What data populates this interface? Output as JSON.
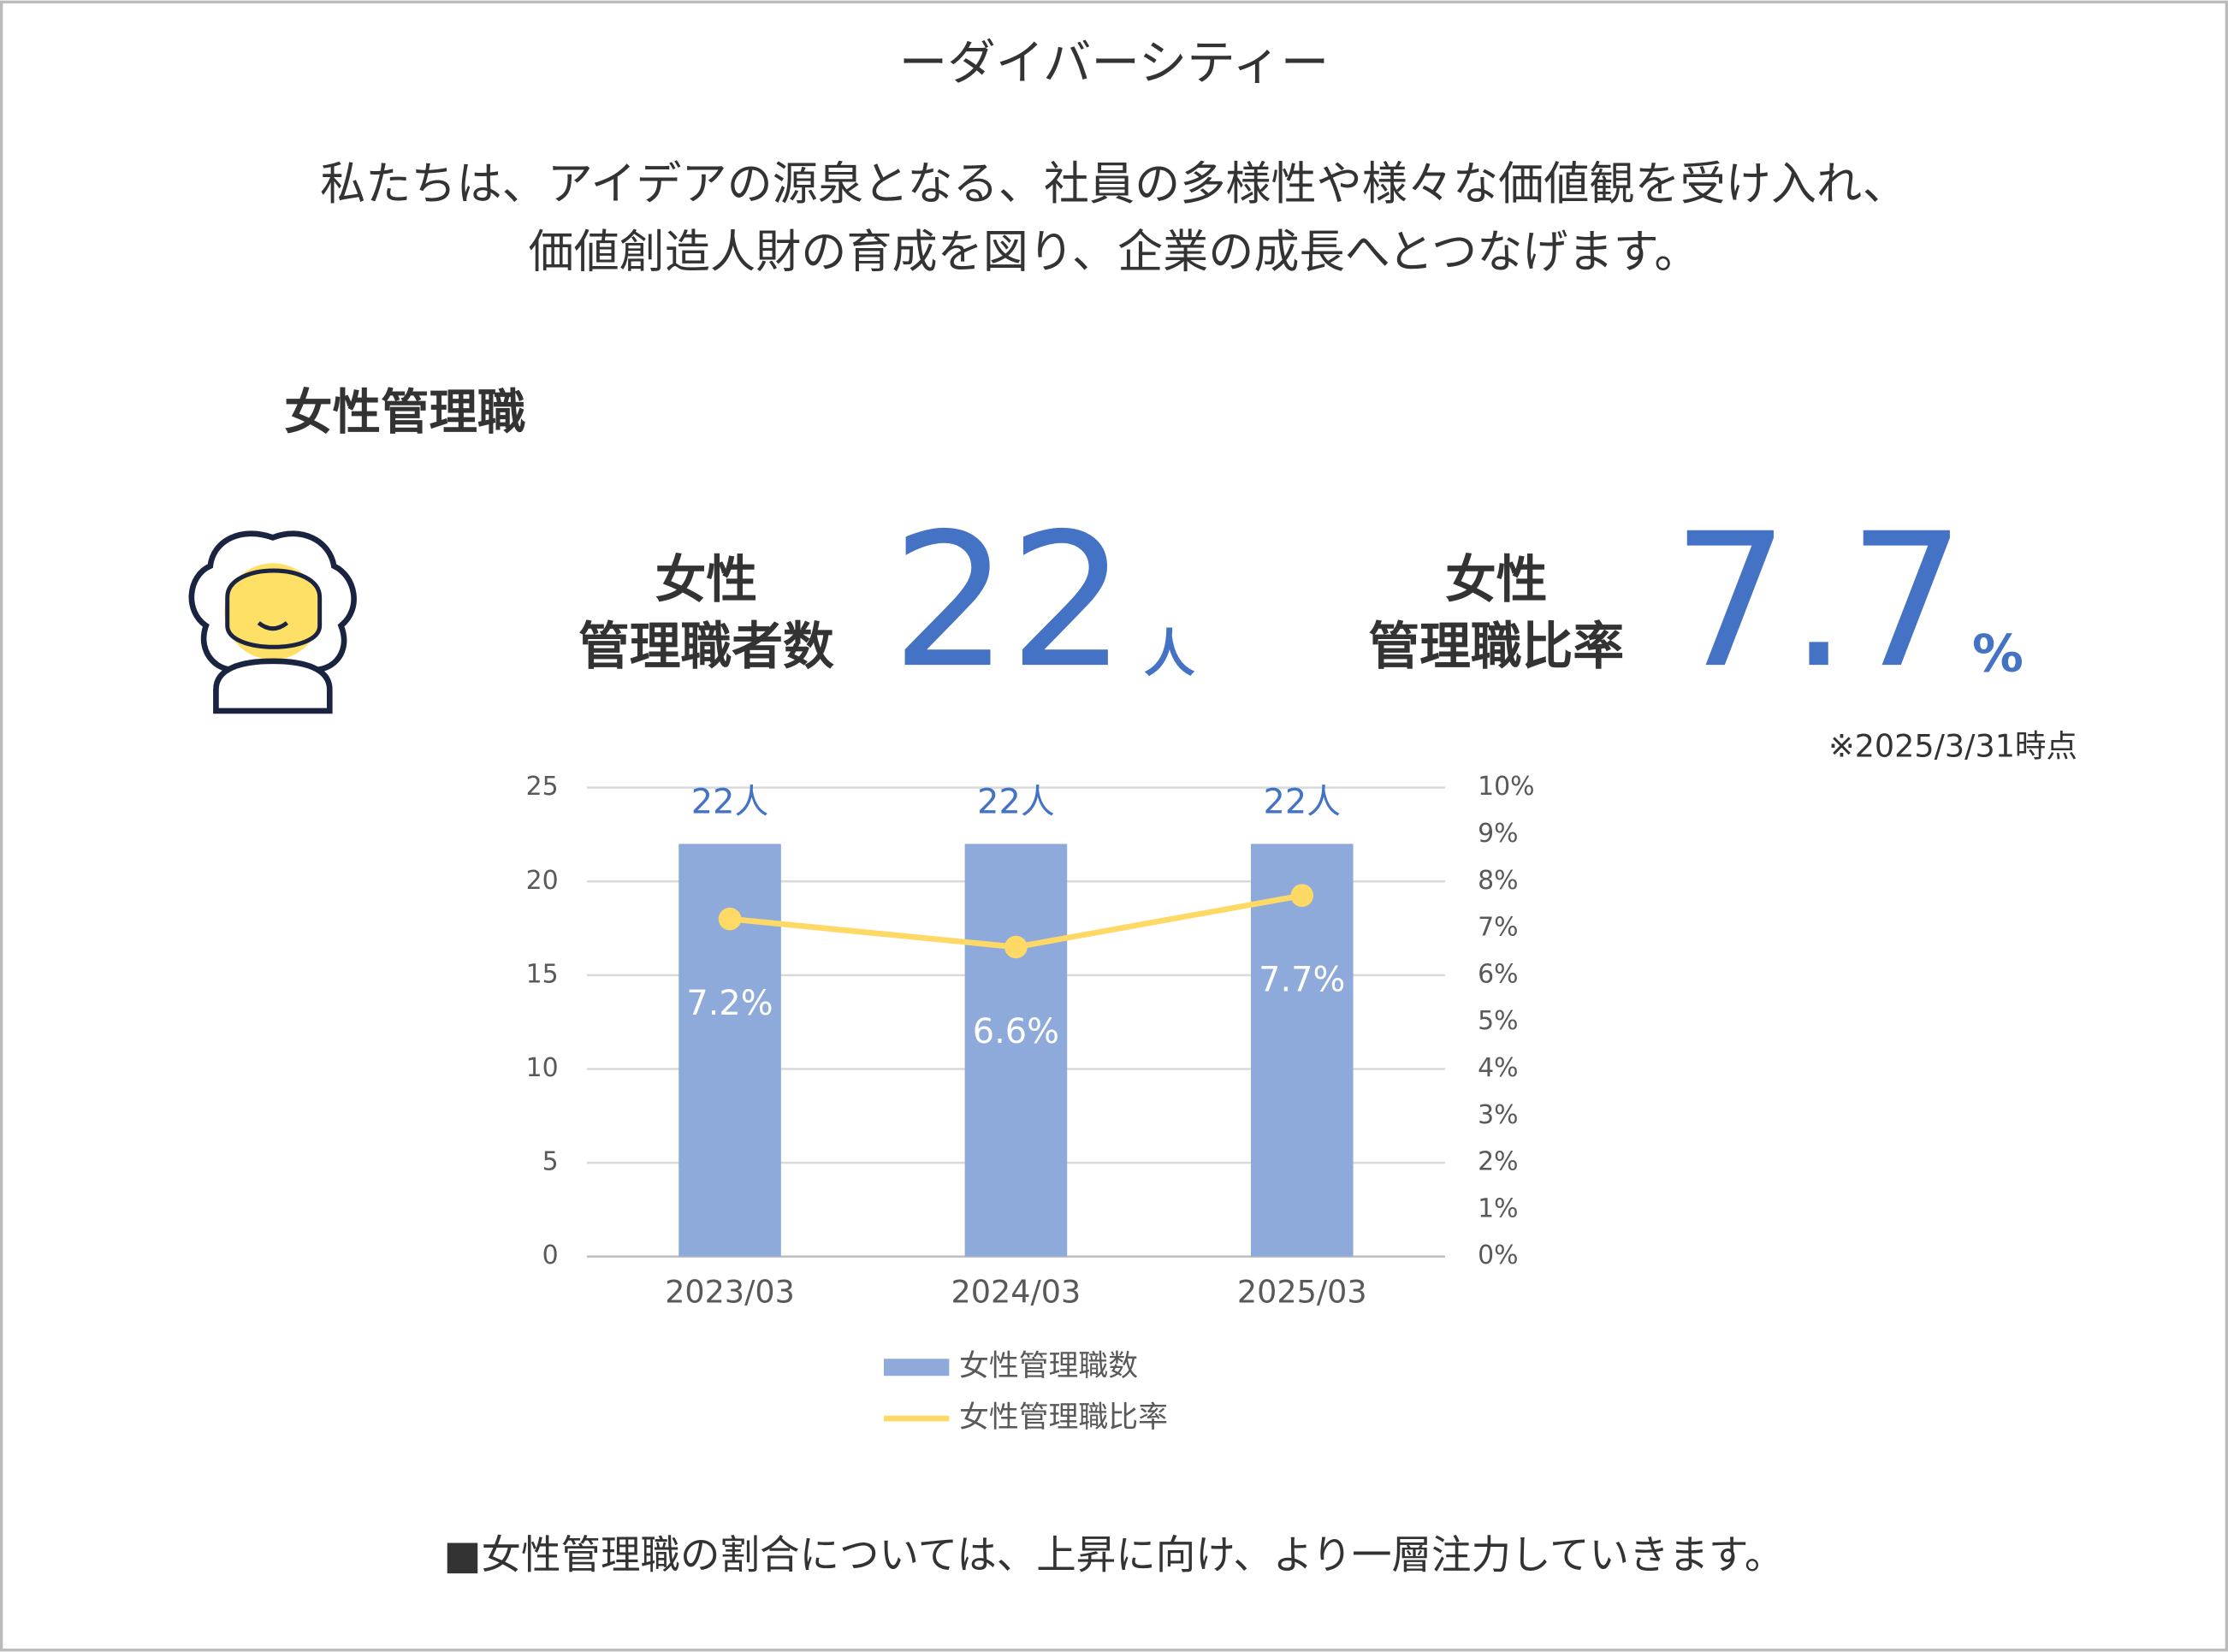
{
  "header": {
    "title": "ーダイバーシティー",
    "lines": [
      "私たちは、アイデアの源泉となる、社員の多様性や様々な価値観を受け入れ、",
      "価値創造人財の育成を図り、企業の成長へとつなげます。"
    ]
  },
  "section": {
    "title": "女性管理職"
  },
  "stats": [
    {
      "label": [
        "女性",
        "管理職者数"
      ],
      "value": 22,
      "unit": "人"
    },
    {
      "label": [
        "女性",
        "管理職比率"
      ],
      "value": 7.7,
      "unit": "%"
    }
  ],
  "note": "※2025/3/31時点",
  "chart_data": {
    "type": "bar",
    "categories": [
      "2023/03",
      "2024/03",
      "2025/03"
    ],
    "series": [
      {
        "name": "女性管理職数",
        "type": "bar",
        "color": "#8eaadb",
        "values": [
          22,
          22,
          22
        ],
        "value_labels": [
          "22人",
          "22人",
          "22人"
        ]
      },
      {
        "name": "女性管理職比率",
        "type": "line",
        "axis": "y2",
        "color": "#ffd966",
        "values": [
          7.2,
          6.6,
          7.7
        ],
        "value_labels": [
          "7.2%",
          "6.6%",
          "7.7%"
        ]
      }
    ],
    "ylim": [
      0,
      25
    ],
    "yticks": [
      0,
      5,
      10,
      15,
      20,
      25
    ],
    "y2lim": [
      0,
      10
    ],
    "y2ticks": [
      {
        "value": 0,
        "label": "0%"
      },
      {
        "value": 1,
        "label": "1%"
      },
      {
        "value": 2,
        "label": "2%"
      },
      {
        "value": 3,
        "label": "3%"
      },
      {
        "value": 4,
        "label": "4%"
      },
      {
        "value": 5,
        "label": "5%"
      },
      {
        "value": 6,
        "label": "6%"
      },
      {
        "value": 7,
        "label": "7%"
      },
      {
        "value": 8,
        "label": "8%"
      },
      {
        "value": 9,
        "label": "9%"
      },
      {
        "value": 10,
        "label": "10%"
      }
    ],
    "grid": true
  },
  "footer": "■女性管理職の割合については、上昇に向け、より一層注力していきます。"
}
